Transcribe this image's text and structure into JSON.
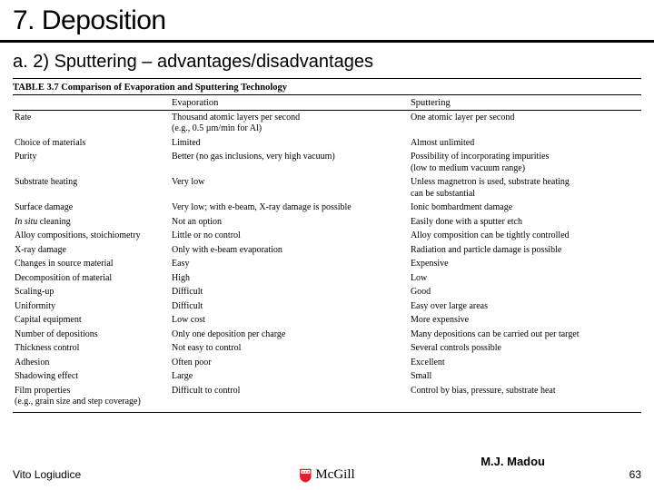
{
  "title": "7. Deposition",
  "subtitle": "a. 2) Sputtering – advantages/disadvantages",
  "table": {
    "caption": "TABLE 3.7   Comparison of Evaporation and Sputtering Technology",
    "headers": [
      "",
      "Evaporation",
      "Sputtering"
    ],
    "rows": [
      [
        "Rate",
        "Thousand atomic layers per second\n(e.g., 0.5 µm/min for Al)",
        "One atomic layer per second"
      ],
      [
        "Choice of materials",
        "Limited",
        "Almost unlimited"
      ],
      [
        "Purity",
        "Better (no gas inclusions, very high vacuum)",
        "Possibility of incorporating impurities\n(low to medium vacuum range)"
      ],
      [
        "Substrate heating",
        "Very low",
        "Unless magnetron is used, substrate heating\ncan be substantial"
      ],
      [
        "Surface damage",
        "Very low; with e-beam, X-ray damage is possible",
        "Ionic bombardment damage"
      ],
      [
        "In situ cleaning",
        "Not an option",
        "Easily done with a sputter etch"
      ],
      [
        "Alloy compositions, stoichiometry",
        "Little or no control",
        "Alloy composition can be tightly controlled"
      ],
      [
        "X-ray damage",
        "Only with e-beam evaporation",
        "Radiation and particle damage is possible"
      ],
      [
        "Changes in source material",
        "Easy",
        "Expensive"
      ],
      [
        "Decomposition of material",
        "High",
        "Low"
      ],
      [
        "Scaling-up",
        "Difficult",
        "Good"
      ],
      [
        "Uniformity",
        "Difficult",
        "Easy over large areas"
      ],
      [
        "Capital equipment",
        "Low cost",
        "More expensive"
      ],
      [
        "Number of depositions",
        "Only one deposition per charge",
        "Many depositions can be carried out per target"
      ],
      [
        "Thickness control",
        "Not easy to control",
        "Several controls possible"
      ],
      [
        "Adhesion",
        "Often poor",
        "Excellent"
      ],
      [
        "Shadowing effect",
        "Large",
        "Small"
      ],
      [
        "Film properties\n(e.g., grain size and step coverage)",
        "Difficult to control",
        "Control by bias, pressure, substrate heat"
      ]
    ]
  },
  "footer": {
    "left": "Vito Logiudice",
    "university": "McGill",
    "right": "M.J. Madou",
    "page": "63"
  },
  "colors": {
    "shield_red": "#ed1b2f",
    "text": "#000000",
    "bg": "#ffffff"
  }
}
